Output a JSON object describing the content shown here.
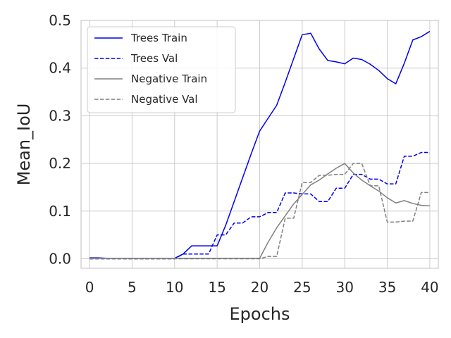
{
  "chart_data": {
    "type": "line",
    "title": "",
    "xlabel": "Epochs",
    "ylabel": "Mean_IoU",
    "xlim": [
      -1,
      41
    ],
    "ylim": [
      -0.02,
      0.5
    ],
    "xticks": [
      0,
      5,
      10,
      15,
      20,
      25,
      30,
      35,
      40
    ],
    "yticks": [
      0.0,
      0.1,
      0.2,
      0.3,
      0.4,
      0.5
    ],
    "xtick_labels": [
      "0",
      "5",
      "10",
      "15",
      "20",
      "25",
      "30",
      "35",
      "40"
    ],
    "ytick_labels": [
      "0.0",
      "0.1",
      "0.2",
      "0.3",
      "0.4",
      "0.5"
    ],
    "grid": true,
    "legend_position": "top-left",
    "x": [
      0,
      1,
      2,
      3,
      4,
      5,
      6,
      7,
      8,
      9,
      10,
      11,
      12,
      13,
      14,
      15,
      16,
      17,
      18,
      19,
      20,
      21,
      22,
      23,
      24,
      25,
      26,
      27,
      28,
      29,
      30,
      31,
      32,
      33,
      34,
      35,
      36,
      37,
      38,
      39,
      40
    ],
    "series": [
      {
        "name": "Trees Train",
        "color": "#0000ee",
        "style": "solid",
        "values": [
          0.002,
          0.002,
          0.001,
          0.001,
          0.001,
          0.001,
          0.001,
          0.001,
          0.001,
          0.001,
          0.001,
          0.01,
          0.027,
          0.027,
          0.027,
          0.027,
          0.07,
          0.12,
          0.17,
          0.22,
          0.268,
          0.295,
          0.322,
          0.37,
          0.42,
          0.47,
          0.473,
          0.44,
          0.416,
          0.413,
          0.409,
          0.421,
          0.418,
          0.408,
          0.395,
          0.378,
          0.367,
          0.41,
          0.459,
          0.466,
          0.477
        ]
      },
      {
        "name": "Trees Val",
        "color": "#0000ee",
        "style": "dashed",
        "values": [
          0.0,
          0.0,
          0.0,
          0.0,
          0.0,
          0.0,
          0.0,
          0.0,
          0.0,
          0.0,
          0.0,
          0.01,
          0.01,
          0.01,
          0.01,
          0.05,
          0.05,
          0.075,
          0.075,
          0.088,
          0.088,
          0.097,
          0.097,
          0.138,
          0.138,
          0.136,
          0.136,
          0.12,
          0.12,
          0.148,
          0.148,
          0.177,
          0.177,
          0.167,
          0.167,
          0.157,
          0.157,
          0.215,
          0.215,
          0.223,
          0.223
        ]
      },
      {
        "name": "Negative Train",
        "color": "#808080",
        "style": "solid",
        "values": [
          0.001,
          0.001,
          0.001,
          0.001,
          0.001,
          0.001,
          0.001,
          0.001,
          0.001,
          0.001,
          0.001,
          0.001,
          0.001,
          0.001,
          0.001,
          0.001,
          0.001,
          0.001,
          0.001,
          0.001,
          0.001,
          0.035,
          0.065,
          0.09,
          0.115,
          0.135,
          0.155,
          0.165,
          0.178,
          0.19,
          0.2,
          0.18,
          0.165,
          0.153,
          0.142,
          0.128,
          0.117,
          0.122,
          0.116,
          0.112,
          0.111
        ]
      },
      {
        "name": "Negative Val",
        "color": "#808080",
        "style": "dashed",
        "values": [
          0.0,
          0.0,
          0.0,
          0.0,
          0.0,
          0.0,
          0.0,
          0.0,
          0.0,
          0.0,
          0.0,
          0.0,
          0.0,
          0.0,
          0.0,
          0.0,
          0.0,
          0.0,
          0.0,
          0.0,
          0.0,
          0.005,
          0.005,
          0.085,
          0.085,
          0.16,
          0.16,
          0.175,
          0.175,
          0.177,
          0.177,
          0.2,
          0.2,
          0.153,
          0.153,
          0.077,
          0.077,
          0.079,
          0.079,
          0.139,
          0.139
        ]
      }
    ]
  }
}
